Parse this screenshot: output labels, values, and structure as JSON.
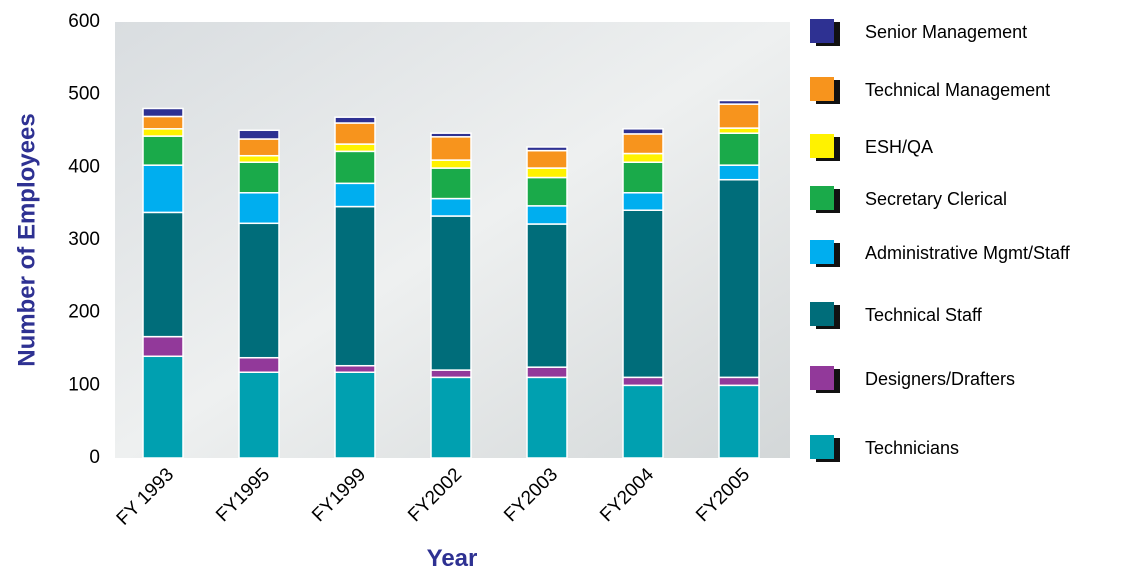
{
  "chart_data": {
    "type": "stacked_bar",
    "y_label": "Number of Employees",
    "x_label": "Year",
    "categories": [
      "FY 1993",
      "FY1995",
      "FY1999",
      "FY2002",
      "FY2003",
      "FY2004",
      "FY2005"
    ],
    "ylim": [
      0,
      600
    ],
    "yticks": [
      0,
      100,
      200,
      300,
      400,
      500,
      600
    ],
    "series": [
      {
        "name": "Technicians",
        "color": "#00a0b0",
        "values": [
          140,
          118,
          118,
          111,
          111,
          100,
          100
        ]
      },
      {
        "name": "Designers/Drafters",
        "color": "#92399a",
        "values": [
          27,
          20,
          9,
          10,
          14,
          11,
          11
        ]
      },
      {
        "name": "Technical Staff",
        "color": "#006d7a",
        "values": [
          171,
          185,
          219,
          212,
          197,
          230,
          272
        ]
      },
      {
        "name": "Administrative Mgmt/Staff",
        "color": "#00aeef",
        "values": [
          65,
          42,
          32,
          24,
          25,
          24,
          20
        ]
      },
      {
        "name": "Secretary Clerical",
        "color": "#1aaa4a",
        "values": [
          40,
          42,
          44,
          42,
          39,
          42,
          44
        ]
      },
      {
        "name": "ESH/QA",
        "color": "#fff200",
        "values": [
          10,
          9,
          10,
          11,
          13,
          12,
          7
        ]
      },
      {
        "name": "Technical Management",
        "color": "#f7941d",
        "values": [
          17,
          23,
          29,
          32,
          24,
          27,
          33
        ]
      },
      {
        "name": "Senior Management",
        "color": "#2e3192",
        "values": [
          11,
          12,
          8,
          5,
          5,
          7,
          5
        ]
      }
    ]
  }
}
